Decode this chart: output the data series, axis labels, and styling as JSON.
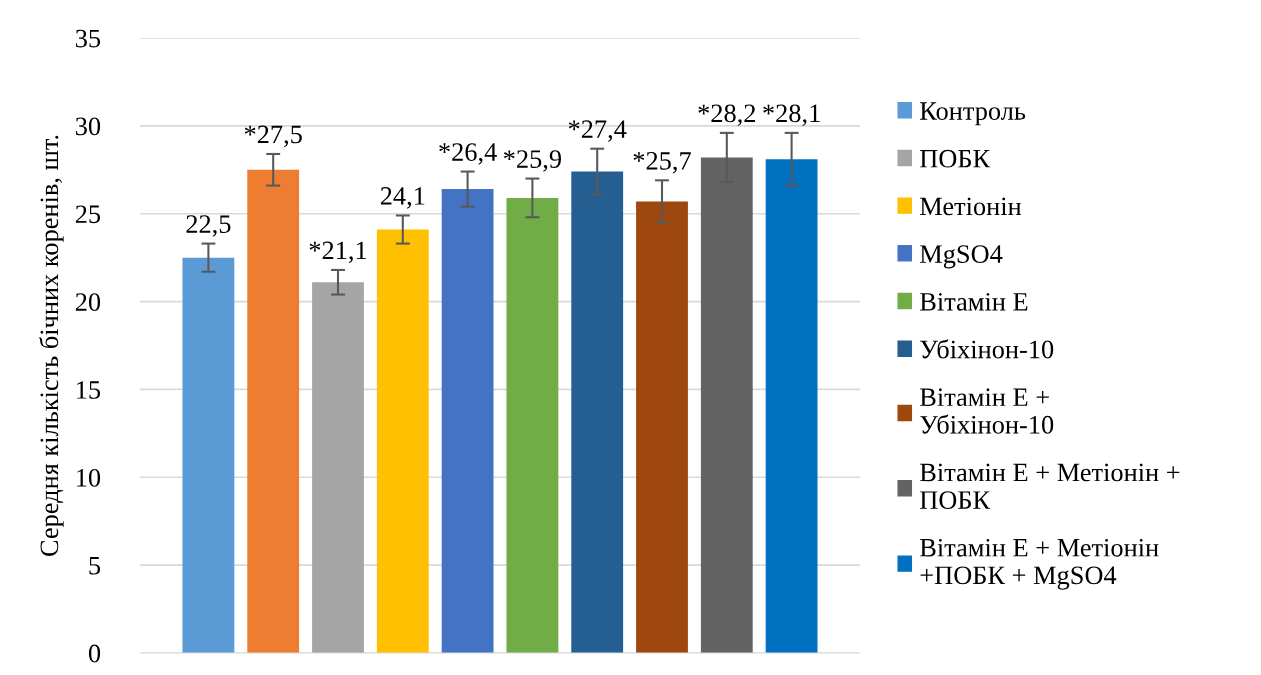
{
  "chart_data": {
    "type": "bar",
    "ylabel": "Середня кількість бічних коренів, шт.",
    "categories": [
      null
    ],
    "series": [
      {
        "name": "Контроль",
        "color": "#5b9bd5",
        "values": [
          22.5
        ],
        "errors": [
          0.8
        ],
        "value_labels": [
          "22,5"
        ]
      },
      {
        "color": "#ed7d31",
        "values": [
          27.5
        ],
        "errors": [
          0.9
        ],
        "value_labels": [
          "*27,5"
        ]
      },
      {
        "name": "ПОБК",
        "color": "#a5a5a5",
        "values": [
          21.1
        ],
        "errors": [
          0.7
        ],
        "value_labels": [
          "*21,1"
        ]
      },
      {
        "name": "Метіонін",
        "color": "#ffc000",
        "values": [
          24.1
        ],
        "errors": [
          0.8
        ],
        "value_labels": [
          "24,1"
        ]
      },
      {
        "name": "MgSO4",
        "color": "#4472c4",
        "values": [
          26.4
        ],
        "errors": [
          1.0
        ],
        "value_labels": [
          "*26,4"
        ]
      },
      {
        "name": "Вітамін Е",
        "color": "#70ad47",
        "values": [
          25.9
        ],
        "errors": [
          1.1
        ],
        "value_labels": [
          "*25,9"
        ]
      },
      {
        "name": "Убіхінон-10",
        "color": "#255e91",
        "values": [
          27.4
        ],
        "errors": [
          1.3
        ],
        "value_labels": [
          "*27,4"
        ]
      },
      {
        "name": "Вітамін Е + Убіхінон-10",
        "color": "#9e480e",
        "values": [
          25.7
        ],
        "errors": [
          1.2
        ],
        "value_labels": [
          "*25,7"
        ]
      },
      {
        "name": "Вітамін Е + Метіонін + ПОБК",
        "color": "#636363",
        "values": [
          28.2
        ],
        "errors": [
          1.4
        ],
        "value_labels": [
          "*28,2"
        ]
      },
      {
        "name": "Вітамін Е + Метіонін +ПОБК + MgSO4",
        "color": "#0070c0",
        "values": [
          28.1
        ],
        "errors": [
          1.5
        ],
        "value_labels": [
          "*28,1"
        ]
      }
    ],
    "ylim": [
      0,
      35
    ],
    "yticks": [
      0,
      5,
      10,
      15,
      20,
      25,
      30,
      35
    ],
    "grid": "y",
    "legend": "right",
    "tick_labels": "y"
  }
}
